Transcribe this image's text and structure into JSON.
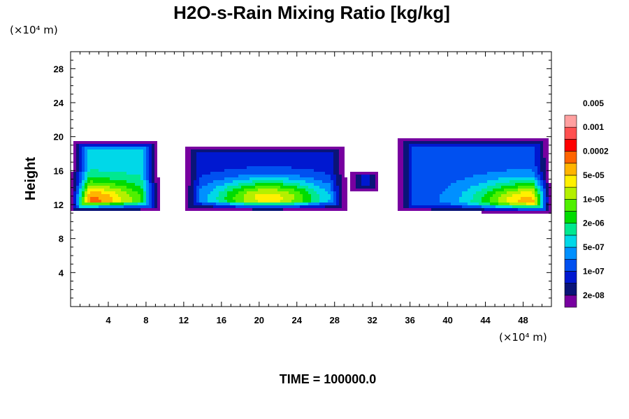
{
  "chart_data": {
    "type": "heatmap",
    "title": "H2O-s-Rain Mixing Ratio [kg/kg]",
    "ylabel": "Height",
    "xlabel": "",
    "x_unit": "(×10⁴ m)",
    "y_unit": "(×10⁴ m)",
    "xlim": [
      0,
      51
    ],
    "ylim": [
      0,
      30
    ],
    "x_ticks": [
      4,
      8,
      12,
      16,
      20,
      24,
      28,
      32,
      36,
      40,
      44,
      48
    ],
    "y_ticks": [
      4,
      8,
      12,
      16,
      20,
      24,
      28
    ],
    "grid": false,
    "colorbar": {
      "colors": [
        "#7800a0",
        "#0a1478",
        "#0018d0",
        "#0050f0",
        "#0090ff",
        "#00d8e8",
        "#00e890",
        "#00dc00",
        "#50f000",
        "#b4f000",
        "#fff000",
        "#ffb400",
        "#ff6400",
        "#ff0000",
        "#ff5050",
        "#ffa0a0"
      ],
      "labels": [
        "2e-08",
        "1e-07",
        "5e-07",
        "2e-06",
        "1e-05",
        "5e-05",
        "0.0002",
        "0.001",
        "0.005"
      ],
      "label_levels": [
        1,
        3,
        5,
        7,
        9,
        11,
        13,
        15,
        17
      ]
    },
    "regions": [
      {
        "x0": 0,
        "x1": 9.5,
        "ybot": 11.2,
        "ytop": 19.6,
        "level": 6,
        "core_x": 1.5,
        "core_y": 12.5,
        "core_level": 13
      },
      {
        "x0": 11.8,
        "x1": 29.5,
        "ybot": 11.2,
        "ytop": 19.0,
        "level": 3,
        "core_x": 21,
        "core_y": 12.8,
        "core_level": 11
      },
      {
        "x0": 29.5,
        "x1": 33.0,
        "ybot": 13.5,
        "ytop": 16.2,
        "level": 2,
        "core_x": 31,
        "core_y": 14.5,
        "core_level": 4
      },
      {
        "x0": 34.5,
        "x1": 51,
        "ybot": 11.0,
        "ytop": 19.8,
        "level": 4,
        "core_x": 49,
        "core_y": 12.5,
        "core_level": 12
      }
    ],
    "annotation": "TIME = 100000.0"
  }
}
